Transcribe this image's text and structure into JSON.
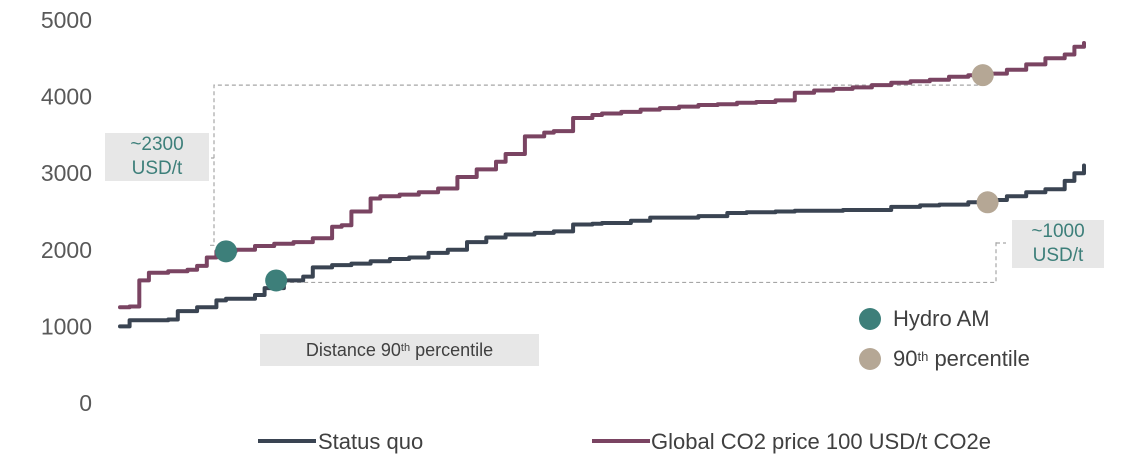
{
  "colors": {
    "status_quo": "#3a4452",
    "co2": "#7a4462",
    "hydro": "#3d7f7a",
    "percentile": "#b5a795",
    "bracket": "#a6a6a6",
    "box": "#e7e7e7"
  },
  "annotations": {
    "co2_gap_line1": "~2300",
    "co2_gap_line2": "USD/t",
    "sq_gap_line1": "~1000",
    "sq_gap_line2": "USD/t",
    "distance_prefix": "Distance 90",
    "distance_sup": "th",
    "distance_suffix": " percentile"
  },
  "marker_legend": {
    "hydro": "Hydro AM",
    "percentile_prefix": "90",
    "percentile_sup": "th",
    "percentile_suffix": " percentile"
  },
  "chart_data": {
    "type": "line",
    "title": "",
    "xlabel": "",
    "ylabel": "",
    "xlim": [
      0,
      100
    ],
    "ylim": [
      0,
      5000
    ],
    "yticks": [
      0,
      1000,
      2000,
      3000,
      4000,
      5000
    ],
    "legend_position": "bottom",
    "grid": false,
    "series": [
      {
        "name": "Status quo",
        "color": "#3a4452",
        "x": [
          0,
          1,
          5,
          6,
          8,
          10,
          11,
          14,
          15,
          17,
          19,
          20,
          22,
          24,
          26,
          28,
          30,
          32,
          34,
          36,
          38,
          40,
          43,
          45,
          47,
          49,
          50,
          53,
          55,
          58,
          60,
          63,
          65,
          68,
          70,
          75,
          80,
          83,
          85,
          88,
          90,
          92,
          94,
          96,
          98,
          99,
          100
        ],
        "y": [
          1000,
          1080,
          1090,
          1200,
          1250,
          1340,
          1360,
          1410,
          1500,
          1600,
          1650,
          1770,
          1800,
          1820,
          1850,
          1880,
          1900,
          1960,
          2000,
          2100,
          2160,
          2200,
          2220,
          2240,
          2330,
          2340,
          2350,
          2380,
          2420,
          2420,
          2440,
          2480,
          2490,
          2500,
          2510,
          2520,
          2560,
          2580,
          2590,
          2620,
          2650,
          2700,
          2750,
          2790,
          2900,
          3000,
          3100
        ]
      },
      {
        "name": "Global CO2 price 100 USD/t CO2e",
        "color": "#7a4462",
        "x": [
          0,
          1,
          2,
          3,
          5,
          7,
          8,
          9,
          10,
          12,
          14,
          16,
          18,
          20,
          22,
          23,
          24,
          26,
          27,
          29,
          31,
          33,
          35,
          37,
          39,
          40,
          42,
          44,
          45,
          47,
          49,
          50,
          52,
          54,
          56,
          58,
          60,
          62,
          64,
          66,
          68,
          70,
          72,
          74,
          76,
          78,
          80,
          82,
          84,
          86,
          88,
          90,
          92,
          94,
          96,
          98,
          99,
          100
        ],
        "y": [
          1250,
          1260,
          1600,
          1700,
          1720,
          1740,
          1790,
          1900,
          1980,
          2000,
          2050,
          2080,
          2100,
          2150,
          2300,
          2320,
          2500,
          2670,
          2700,
          2720,
          2750,
          2800,
          2950,
          3050,
          3150,
          3250,
          3480,
          3530,
          3550,
          3720,
          3760,
          3780,
          3800,
          3830,
          3850,
          3870,
          3890,
          3900,
          3920,
          3930,
          3950,
          4050,
          4080,
          4100,
          4120,
          4150,
          4180,
          4200,
          4220,
          4260,
          4280,
          4300,
          4350,
          4420,
          4500,
          4550,
          4650,
          4700
        ]
      }
    ],
    "markers": [
      {
        "name": "Hydro AM",
        "series": "Global CO2 price 100 USD/t CO2e",
        "x": 11,
        "y": 1980,
        "color": "#3d7f7a"
      },
      {
        "name": "Hydro AM",
        "series": "Status quo",
        "x": 16.2,
        "y": 1600,
        "color": "#3d7f7a"
      },
      {
        "name": "90th percentile",
        "series": "Global CO2 price 100 USD/t CO2e",
        "x": 89.5,
        "y": 4280,
        "color": "#b5a795"
      },
      {
        "name": "90th percentile",
        "series": "Status quo",
        "x": 90,
        "y": 2620,
        "color": "#b5a795"
      }
    ]
  }
}
